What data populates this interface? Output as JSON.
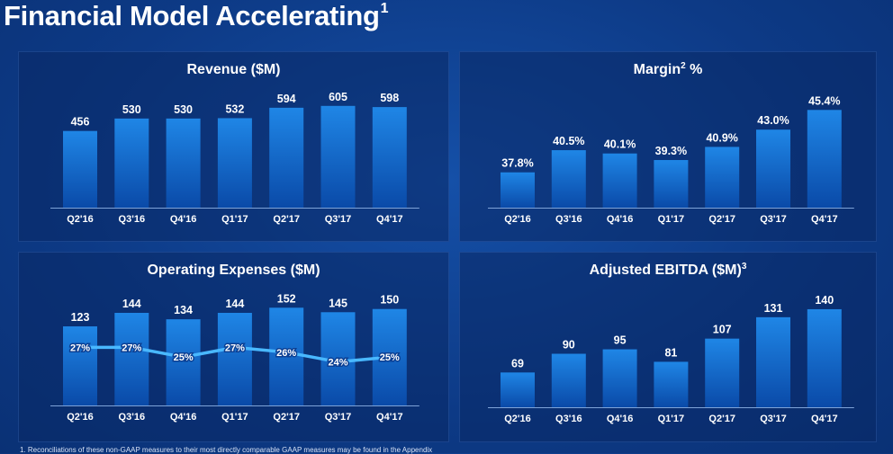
{
  "page": {
    "title": "Financial Model Accelerating",
    "title_note": "1",
    "footnote": "1. Reconciliations of these non-GAAP measures to their most directly comparable GAAP measures may be found in the Appendix"
  },
  "colors": {
    "bar_top": "#1f86e6",
    "bar_bottom": "#0a4aa8",
    "line": "#49b8ff",
    "text": "#ffffff"
  },
  "chart_data": [
    {
      "type": "bar",
      "title": "Revenue ($M)",
      "title_note": "",
      "categories": [
        "Q2'16",
        "Q3'16",
        "Q4'16",
        "Q1'17",
        "Q2'17",
        "Q3'17",
        "Q4'17"
      ],
      "values": [
        456,
        530,
        530,
        532,
        594,
        605,
        598
      ],
      "value_labels": [
        "456",
        "530",
        "530",
        "532",
        "594",
        "605",
        "598"
      ],
      "ylim": [
        0,
        620
      ]
    },
    {
      "type": "bar",
      "title": "Margin",
      "title_note": "2",
      "title_suffix": " %",
      "categories": [
        "Q2'16",
        "Q3'16",
        "Q4'16",
        "Q1'17",
        "Q2'17",
        "Q3'17",
        "Q4'17"
      ],
      "values": [
        37.8,
        40.5,
        40.1,
        39.3,
        40.9,
        43.0,
        45.4
      ],
      "value_labels": [
        "37.8%",
        "40.5%",
        "40.1%",
        "39.3%",
        "40.9%",
        "43.0%",
        "45.4%"
      ],
      "ylim": [
        33.5,
        46.2
      ]
    },
    {
      "type": "bar",
      "title": "Operating Expenses ($M)",
      "title_note": "",
      "categories": [
        "Q2'16",
        "Q3'16",
        "Q4'16",
        "Q1'17",
        "Q2'17",
        "Q3'17",
        "Q4'17"
      ],
      "values": [
        123,
        144,
        134,
        144,
        152,
        145,
        150
      ],
      "value_labels": [
        "123",
        "144",
        "134",
        "144",
        "152",
        "145",
        "150"
      ],
      "ylim": [
        0,
        158
      ],
      "line_series": {
        "values": [
          27,
          27,
          25,
          27,
          26,
          24,
          25
        ],
        "labels": [
          "27%",
          "27%",
          "25%",
          "27%",
          "26%",
          "24%",
          "25%"
        ],
        "ylim": [
          15,
          36
        ]
      }
    },
    {
      "type": "bar",
      "title": "Adjusted EBITDA ($M)",
      "title_note": "3",
      "categories": [
        "Q2'16",
        "Q3'16",
        "Q4'16",
        "Q1'17",
        "Q2'17",
        "Q3'17",
        "Q4'17"
      ],
      "values": [
        69,
        90,
        95,
        81,
        107,
        131,
        140
      ],
      "value_labels": [
        "69",
        "90",
        "95",
        "81",
        "107",
        "131",
        "140"
      ],
      "ylim": [
        30,
        146
      ]
    }
  ]
}
